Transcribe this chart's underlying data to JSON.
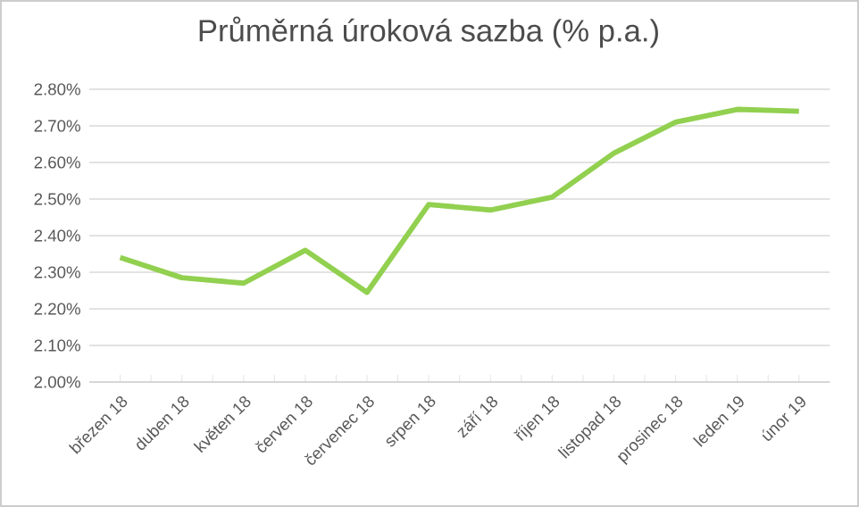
{
  "chart_data": {
    "type": "line",
    "title": "Průměrná úroková sazba (% p.a.)",
    "categories": [
      "březen 18",
      "duben 18",
      "květen 18",
      "červen 18",
      "červenec 18",
      "srpen 18",
      "září 18",
      "říjen 18",
      "listopad 18",
      "prosinec 18",
      "leden 19",
      "únor 19"
    ],
    "values": [
      2.34,
      2.285,
      2.27,
      2.36,
      2.245,
      2.485,
      2.47,
      2.505,
      2.625,
      2.71,
      2.745,
      2.74
    ],
    "color": "#92d050",
    "ylim": [
      2.0,
      2.8
    ],
    "yticks": [
      {
        "value": 2.0,
        "label": "2.00%"
      },
      {
        "value": 2.1,
        "label": "2.10%"
      },
      {
        "value": 2.2,
        "label": "2.20%"
      },
      {
        "value": 2.3,
        "label": "2.30%"
      },
      {
        "value": 2.4,
        "label": "2.40%"
      },
      {
        "value": 2.5,
        "label": "2.50%"
      },
      {
        "value": 2.6,
        "label": "2.60%"
      },
      {
        "value": 2.7,
        "label": "2.70%"
      },
      {
        "value": 2.8,
        "label": "2.80%"
      }
    ],
    "grid": "y",
    "marker": "none",
    "line_style": "solid"
  }
}
